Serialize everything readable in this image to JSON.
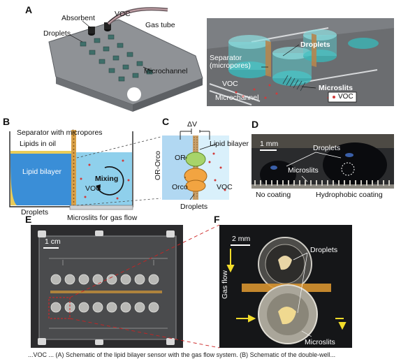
{
  "panels": {
    "A": {
      "label": "A",
      "left_labels": [
        "Absorbent",
        "VOC",
        "Droplets",
        "Gas tube",
        "Microchannel"
      ],
      "right_labels": [
        "Droplets",
        "Separator (micropores)",
        "VOC",
        "Microslits",
        "Microchannel",
        "VOC"
      ]
    },
    "B": {
      "label": "B",
      "labels": [
        "Separator with micropores",
        "Lipids in oil",
        "Lipid bilayer",
        "Mixing",
        "VOC",
        "Droplets",
        "Microslits for gas flow"
      ]
    },
    "C": {
      "label": "C",
      "labels": [
        "ΔV",
        "Lipid bilayer",
        "OR",
        "OR-Orco",
        "Orco",
        "VOC",
        "Droplets"
      ]
    },
    "D": {
      "label": "D",
      "labels": [
        "1 mm",
        "Droplets",
        "Microslits",
        "No coating",
        "Hydrophobic coating"
      ]
    },
    "E": {
      "label": "E",
      "labels": [
        "1 cm"
      ]
    },
    "F": {
      "label": "F",
      "labels": [
        "2 mm",
        "Droplets",
        "Gas flow",
        "Microslits"
      ]
    }
  },
  "caption": "...VOC ... (A) Schematic of the lipid bilayer sensor with the gas flow system. (B) Schematic of the double-well..."
}
